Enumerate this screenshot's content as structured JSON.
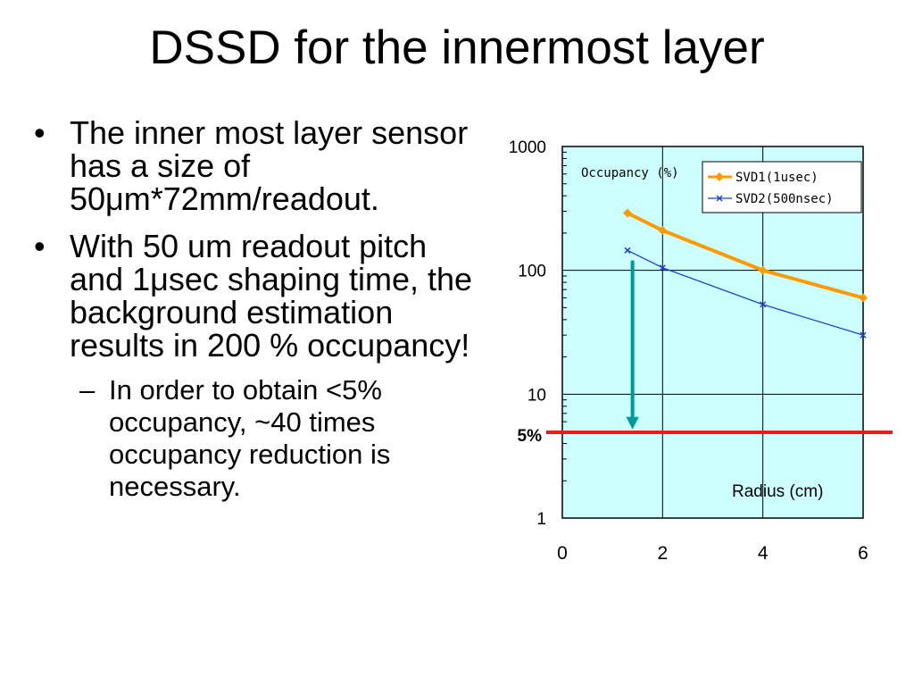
{
  "slide": {
    "title": "DSSD for the innermost layer",
    "bullets": [
      {
        "marker": "•",
        "text": "The inner most layer sensor has a size of 50μm*72mm/readout."
      },
      {
        "marker": "•",
        "text": "With 50 um readout pitch and 1μsec shaping time, the background estimation results in 200 % occupancy!"
      }
    ],
    "sub_bullets": [
      {
        "marker": "–",
        "text": "In order to obtain <5% occupancy, ~40 times occupancy reduction is necessary."
      }
    ]
  },
  "chart_data": {
    "type": "line",
    "title": "Occupancy (%)",
    "xlabel": "Radius (cm)",
    "ylabel": "",
    "y_scale": "log",
    "xlim": [
      0,
      6
    ],
    "ylim": [
      1,
      1000
    ],
    "x_ticks": [
      "0",
      "2",
      "4",
      "6"
    ],
    "y_ticks": [
      "1",
      "10",
      "100",
      "1000"
    ],
    "grid": true,
    "legend_position": "top-right",
    "plot_background": "#ccffff",
    "series": [
      {
        "name": "SVD1(1usec)",
        "color": "#ff9900",
        "marker": "diamond",
        "x": [
          1.3,
          2,
          4,
          6
        ],
        "y": [
          290,
          210,
          100,
          60
        ]
      },
      {
        "name": "SVD2(500nsec)",
        "color": "#1f3fd6",
        "marker": "x",
        "x": [
          1.3,
          2,
          4,
          6
        ],
        "y": [
          145,
          105,
          53,
          30
        ]
      }
    ],
    "annotations": {
      "threshold": {
        "label": "5%",
        "value": 5,
        "color": "#e81c1c"
      },
      "arrow": {
        "x": 1.4,
        "from": 120,
        "to": 5.2,
        "color": "#009999"
      }
    }
  }
}
